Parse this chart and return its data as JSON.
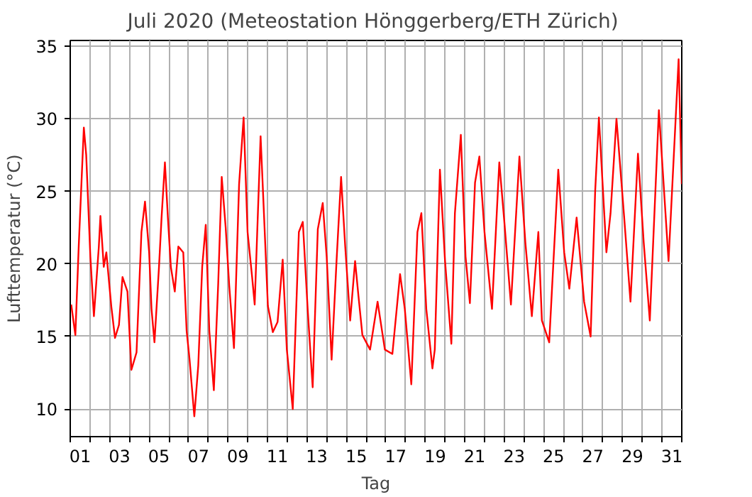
{
  "chart_data": {
    "type": "line",
    "title": "Juli 2020  (Meteostation Hönggerberg/ETH Zürich)",
    "xlabel": "Tag",
    "ylabel": "Lufttemperatur (°C)",
    "xlim": [
      0,
      31
    ],
    "ylim": [
      8.1,
      35.4
    ],
    "yticks": [
      10,
      15,
      20,
      25,
      30,
      35
    ],
    "grid": true,
    "line_style": "solid",
    "xticks": [
      {
        "value": 0,
        "label": null
      },
      {
        "value": 1,
        "label": null
      },
      {
        "value": 2,
        "label": null
      },
      {
        "value": 3,
        "label": null
      },
      {
        "value": 4,
        "label": null
      },
      {
        "value": 5,
        "label": null
      },
      {
        "value": 6,
        "label": null
      },
      {
        "value": 7,
        "label": null
      },
      {
        "value": 8,
        "label": null
      },
      {
        "value": 9,
        "label": null
      },
      {
        "value": 10,
        "label": null
      },
      {
        "value": 11,
        "label": null
      },
      {
        "value": 12,
        "label": null
      },
      {
        "value": 13,
        "label": null
      },
      {
        "value": 14,
        "label": null
      },
      {
        "value": 15,
        "label": null
      },
      {
        "value": 16,
        "label": null
      },
      {
        "value": 17,
        "label": null
      },
      {
        "value": 18,
        "label": null
      },
      {
        "value": 19,
        "label": null
      },
      {
        "value": 20,
        "label": null
      },
      {
        "value": 21,
        "label": null
      },
      {
        "value": 22,
        "label": null
      },
      {
        "value": 23,
        "label": null
      },
      {
        "value": 24,
        "label": null
      },
      {
        "value": 25,
        "label": null
      },
      {
        "value": 26,
        "label": null
      },
      {
        "value": 27,
        "label": null
      },
      {
        "value": 28,
        "label": null
      },
      {
        "value": 29,
        "label": null
      },
      {
        "value": 30,
        "label": null
      },
      {
        "value": 31,
        "label": null
      },
      {
        "value": 0.5,
        "label": "01"
      },
      {
        "value": 2.5,
        "label": "03"
      },
      {
        "value": 4.5,
        "label": "05"
      },
      {
        "value": 6.5,
        "label": "07"
      },
      {
        "value": 8.5,
        "label": "09"
      },
      {
        "value": 10.5,
        "label": "11"
      },
      {
        "value": 12.5,
        "label": "13"
      },
      {
        "value": 14.5,
        "label": "15"
      },
      {
        "value": 16.5,
        "label": "17"
      },
      {
        "value": 18.5,
        "label": "19"
      },
      {
        "value": 20.5,
        "label": "21"
      },
      {
        "value": 22.5,
        "label": "23"
      },
      {
        "value": 24.5,
        "label": "25"
      },
      {
        "value": 26.5,
        "label": "27"
      },
      {
        "value": 28.5,
        "label": "29"
      },
      {
        "value": 30.5,
        "label": "31"
      }
    ],
    "series": [
      {
        "color": "#ff0000",
        "x": [
          0.05,
          0.26,
          0.43,
          0.69,
          0.81,
          1.02,
          1.2,
          1.45,
          1.53,
          1.7,
          1.83,
          2.08,
          2.27,
          2.47,
          2.65,
          2.9,
          3.1,
          3.36,
          3.61,
          3.79,
          4.0,
          4.12,
          4.27,
          4.5,
          4.63,
          4.8,
          4.95,
          5.1,
          5.3,
          5.48,
          5.73,
          5.9,
          6.05,
          6.29,
          6.49,
          6.69,
          6.87,
          7.05,
          7.28,
          7.5,
          7.68,
          7.88,
          8.06,
          8.3,
          8.56,
          8.79,
          8.99,
          9.22,
          9.35,
          9.65,
          9.8,
          10.02,
          10.27,
          10.51,
          10.77,
          10.98,
          11.28,
          11.59,
          11.79,
          12.04,
          12.29,
          12.55,
          12.8,
          13.0,
          13.25,
          13.5,
          13.73,
          13.94,
          14.19,
          14.44,
          14.61,
          14.81,
          15.2,
          15.58,
          15.95,
          16.33,
          16.72,
          16.96,
          17.29,
          17.6,
          17.8,
          18.05,
          18.36,
          18.48,
          18.74,
          19.0,
          19.32,
          19.5,
          19.8,
          20.04,
          20.26,
          20.52,
          20.74,
          21.0,
          21.38,
          21.75,
          22.0,
          22.34,
          22.77,
          23.07,
          23.4,
          23.73,
          23.91,
          24.28,
          24.74,
          25.04,
          25.3,
          25.67,
          26.05,
          26.38,
          26.61,
          26.8,
          27.18,
          27.39,
          27.69,
          28.07,
          28.4,
          28.78,
          29.07,
          29.38,
          29.84,
          30.33,
          30.84,
          31.0
        ],
        "values": [
          17.2,
          15.1,
          21.2,
          29.4,
          27.5,
          20.5,
          16.4,
          21.2,
          23.3,
          19.8,
          20.8,
          17.1,
          14.9,
          15.8,
          19.1,
          18.1,
          12.7,
          13.9,
          22.2,
          24.3,
          20.8,
          16.9,
          14.6,
          19.8,
          23.2,
          27.0,
          23.2,
          19.8,
          18.1,
          21.2,
          20.8,
          15.4,
          13.4,
          9.5,
          13.0,
          19.8,
          22.7,
          15.4,
          11.3,
          18.6,
          26.0,
          22.5,
          18.5,
          14.2,
          25.5,
          30.1,
          22.2,
          19.1,
          17.2,
          28.8,
          24.1,
          17.1,
          15.3,
          16.0,
          20.3,
          14.1,
          10.0,
          22.2,
          22.9,
          16.8,
          11.5,
          22.4,
          24.2,
          20.5,
          13.4,
          20.2,
          26.0,
          21.2,
          16.1,
          20.2,
          17.8,
          15.1,
          14.1,
          17.4,
          14.1,
          13.8,
          19.3,
          16.9,
          11.7,
          22.2,
          23.5,
          16.9,
          12.8,
          14.1,
          26.5,
          20.2,
          14.5,
          23.5,
          28.9,
          20.5,
          17.3,
          25.6,
          27.4,
          22.2,
          16.9,
          27.0,
          23.0,
          17.2,
          27.4,
          21.5,
          16.4,
          22.2,
          16.1,
          14.6,
          26.5,
          20.8,
          18.3,
          23.2,
          17.4,
          15.0,
          25.0,
          30.1,
          20.8,
          23.5,
          30.0,
          23.4,
          17.4,
          27.6,
          21.5,
          16.1,
          30.6,
          20.2,
          34.1,
          25.5
        ]
      }
    ]
  }
}
